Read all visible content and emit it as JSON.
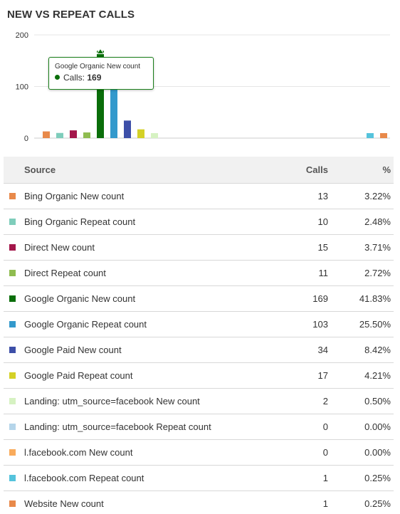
{
  "title": "NEW VS REPEAT CALLS",
  "chart_data": {
    "type": "bar",
    "ylim": [
      0,
      200
    ],
    "yticks": [
      "0",
      "100",
      "200"
    ],
    "categories": [
      "Bing Organic New count",
      "Bing Organic Repeat count",
      "Direct New count",
      "Direct Repeat count",
      "Google Organic New count",
      "Google Organic Repeat count",
      "Google Paid New count",
      "Google Paid Repeat count",
      "Landing: utm_source=facebook New count",
      "Landing: utm_source=facebook Repeat count",
      "l.facebook.com New count",
      "l.facebook.com Repeat count",
      "Website New count"
    ],
    "values": [
      13,
      10,
      15,
      11,
      169,
      103,
      34,
      17,
      2,
      0,
      0,
      1,
      1
    ],
    "colors": [
      "#e8894a",
      "#7fcdbb",
      "#a3164a",
      "#8fbc50",
      "#0a6e0a",
      "#3399cc",
      "#3d4fa8",
      "#d4d126",
      "#d6f2c2",
      "#b5d5ea",
      "#f9ab5c",
      "#55c3dc",
      "#e8894a"
    ],
    "grid": true,
    "legend": "none"
  },
  "tooltip": {
    "title": "Google Organic New count",
    "label": "Calls:",
    "value": "169"
  },
  "table": {
    "headers": {
      "source": "Source",
      "calls": "Calls",
      "pct": "%"
    },
    "rows": [
      {
        "source": "Bing Organic New count",
        "calls": "13",
        "pct": "3.22%",
        "color": "#e8894a"
      },
      {
        "source": "Bing Organic Repeat count",
        "calls": "10",
        "pct": "2.48%",
        "color": "#7fcdbb"
      },
      {
        "source": "Direct New count",
        "calls": "15",
        "pct": "3.71%",
        "color": "#a3164a"
      },
      {
        "source": "Direct Repeat count",
        "calls": "11",
        "pct": "2.72%",
        "color": "#8fbc50"
      },
      {
        "source": "Google Organic New count",
        "calls": "169",
        "pct": "41.83%",
        "color": "#0a6e0a"
      },
      {
        "source": "Google Organic Repeat count",
        "calls": "103",
        "pct": "25.50%",
        "color": "#3399cc"
      },
      {
        "source": "Google Paid New count",
        "calls": "34",
        "pct": "8.42%",
        "color": "#3d4fa8"
      },
      {
        "source": "Google Paid Repeat count",
        "calls": "17",
        "pct": "4.21%",
        "color": "#d4d126"
      },
      {
        "source": "Landing: utm_source=facebook New count",
        "calls": "2",
        "pct": "0.50%",
        "color": "#d6f2c2"
      },
      {
        "source": "Landing: utm_source=facebook Repeat count",
        "calls": "0",
        "pct": "0.00%",
        "color": "#b5d5ea"
      },
      {
        "source": "l.facebook.com New count",
        "calls": "0",
        "pct": "0.00%",
        "color": "#f9ab5c"
      },
      {
        "source": "l.facebook.com Repeat count",
        "calls": "1",
        "pct": "0.25%",
        "color": "#55c3dc"
      },
      {
        "source": "Website New count",
        "calls": "1",
        "pct": "0.25%",
        "color": "#e8894a"
      }
    ]
  }
}
